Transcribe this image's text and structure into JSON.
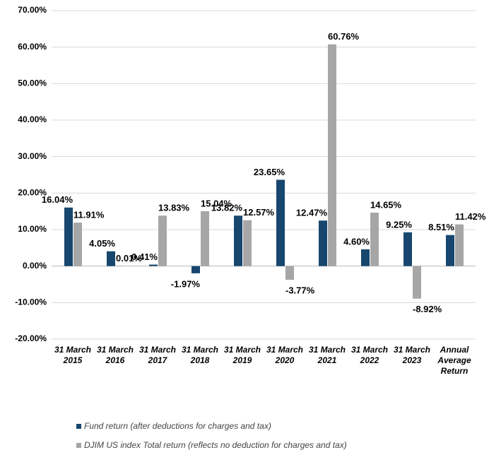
{
  "chart_data": {
    "type": "bar",
    "categories": [
      "31 March 2015",
      "31 March 2016",
      "31 March 2017",
      "31 March 2018",
      "31 March 2019",
      "31 March 2020",
      "31 March 2021",
      "31 March 2022",
      "31 March 2023",
      "Annual Average Return"
    ],
    "series": [
      {
        "name": "Fund return (after deductions for charges and tax)",
        "color": "#17476e",
        "values": [
          16.04,
          4.05,
          0.41,
          -1.97,
          13.82,
          23.65,
          12.47,
          4.6,
          9.25,
          8.51
        ],
        "value_labels": [
          "16.04%",
          "4.05%",
          "0.41%",
          "-1.97%",
          "13.82%",
          "23.65%",
          "12.47%",
          "4.60%",
          "9.25%",
          "8.51%"
        ]
      },
      {
        "name": "DJIM US index Total return (reflects no deduction for charges and tax)",
        "color": "#a6a6a6",
        "values": [
          11.91,
          0.01,
          13.83,
          15.04,
          12.57,
          -3.77,
          60.76,
          14.65,
          -8.92,
          11.42
        ],
        "value_labels": [
          "11.91%",
          "0.01%",
          "13.83%",
          "15.04%",
          "12.57%",
          "-3.77%",
          "60.76%",
          "14.65%",
          "-8.92%",
          "11.42%"
        ]
      }
    ],
    "ylim": [
      -20,
      70
    ],
    "yticks": [
      {
        "value": -20,
        "label": "-20.00%"
      },
      {
        "value": -10,
        "label": "-10.00%"
      },
      {
        "value": 0,
        "label": "0.00%"
      },
      {
        "value": 10,
        "label": "10.00%"
      },
      {
        "value": 20,
        "label": "20.00%"
      },
      {
        "value": 30,
        "label": "30.00%"
      },
      {
        "value": 40,
        "label": "40.00%"
      },
      {
        "value": 50,
        "label": "50.00%"
      },
      {
        "value": 60,
        "label": "60.00%"
      },
      {
        "value": 70,
        "label": "70.00%"
      }
    ],
    "grid": true
  }
}
